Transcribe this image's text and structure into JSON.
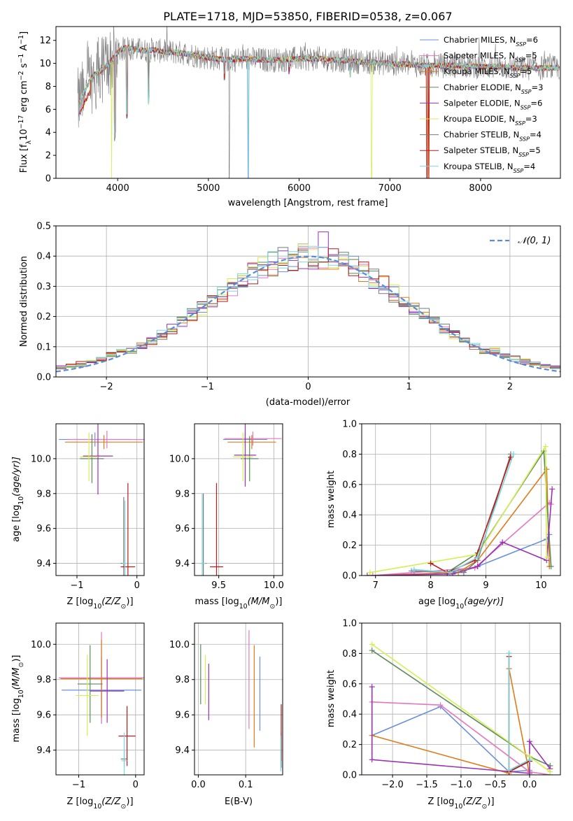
{
  "colors": [
    "#6a8fdc",
    "#e377c2",
    "#e07b1a",
    "#5b8a5b",
    "#9b30b8",
    "#d4ef55",
    "#7a7a7a",
    "#b81c1c",
    "#7fd6dc"
  ],
  "legend_labels": [
    "Chabrier MILES, N",
    "Salpeter MILES, N",
    "Kroupa MILES, N",
    "Chabrier ELODIE, N",
    "Salpeter ELODIE, N",
    "Kroupa ELODIE, N",
    "Chabrier STELIB, N",
    "Salpeter STELIB, N",
    "Kroupa STELIB, N"
  ],
  "legend_sub": "SSP",
  "legend_counts": [
    "=6",
    "=5",
    "=5",
    "=3",
    "=6",
    "=3",
    "=4",
    "=5",
    "=4"
  ],
  "chart_data": [
    {
      "id": "spectrum",
      "type": "line",
      "title": "PLATE=1718, MJD=53850, FIBERID=0538, z=0.067",
      "xlabel": "wavelength [Angstrom, rest frame]",
      "ylabel": "Flux [f",
      "ylabel_sub": "λ",
      "ylabel_rest": "10",
      "ylabel_exp": "−17",
      "ylabel_units": " erg cm",
      "ylabel_cm_exp": "−2",
      "ylabel_s": " s",
      "ylabel_s_exp": "−1",
      "ylabel_A": " A",
      "ylabel_A_exp": "−1",
      "ylabel_end": "]",
      "xlim": [
        3320,
        8880
      ],
      "ylim": [
        0,
        13.2
      ],
      "xticks": [
        4000,
        5000,
        6000,
        7000,
        8000
      ],
      "yticks": [
        0,
        2,
        4,
        6,
        8,
        10,
        12
      ],
      "xticklabels": [
        "4000",
        "5000",
        "6000",
        "7000",
        "8000"
      ],
      "yticklabels": [
        "0",
        "2",
        "4",
        "6",
        "8",
        "10",
        "12"
      ],
      "continuum": [
        [
          3560,
          6.4
        ],
        [
          3600,
          7.0
        ],
        [
          3650,
          7.8
        ],
        [
          3700,
          8.6
        ],
        [
          3750,
          9.1
        ],
        [
          3800,
          9.3
        ],
        [
          3850,
          9.6
        ],
        [
          3900,
          10.0
        ],
        [
          3950,
          10.4
        ],
        [
          4000,
          11.0
        ],
        [
          4100,
          11.4
        ],
        [
          4200,
          11.2
        ],
        [
          4300,
          11.1
        ],
        [
          4400,
          11.2
        ],
        [
          4500,
          11.0
        ],
        [
          4600,
          11.0
        ],
        [
          4700,
          10.9
        ],
        [
          4800,
          10.8
        ],
        [
          4900,
          10.6
        ],
        [
          5000,
          10.5
        ],
        [
          5200,
          10.3
        ],
        [
          5400,
          10.4
        ],
        [
          5600,
          10.3
        ],
        [
          5800,
          10.3
        ],
        [
          6000,
          10.4
        ],
        [
          6200,
          10.4
        ],
        [
          6400,
          10.3
        ],
        [
          6600,
          10.2
        ],
        [
          6800,
          10.1
        ],
        [
          7000,
          10.0
        ],
        [
          7200,
          9.9
        ],
        [
          7400,
          9.8
        ],
        [
          7600,
          9.8
        ],
        [
          7800,
          9.8
        ],
        [
          8000,
          9.7
        ],
        [
          8200,
          9.7
        ],
        [
          8400,
          9.6
        ],
        [
          8600,
          9.6
        ],
        [
          8800,
          9.6
        ]
      ]
    },
    {
      "id": "residuals",
      "type": "histogram",
      "xlabel": "(data-model)/error",
      "ylabel": "Normed distribution",
      "legend": "𝒩(0, 1)",
      "xlim": [
        -2.5,
        2.5
      ],
      "ylim": [
        0,
        0.5
      ],
      "xticks": [
        -2,
        -1,
        0,
        1,
        2
      ],
      "yticks": [
        0,
        0.1,
        0.2,
        0.3,
        0.4,
        0.5
      ],
      "xticklabels": [
        "−2",
        "−1",
        "0",
        "1",
        "2"
      ],
      "yticklabels": [
        "0.0",
        "0.1",
        "0.2",
        "0.3",
        "0.4",
        "0.5"
      ],
      "bin_width": 0.1
    },
    {
      "id": "age-vs-Z",
      "type": "errorbar",
      "xlabel": "Z [log",
      "xlabel_sub": "10",
      "xlabel_rest": "(Z/Z",
      "xlabel_sun": "⊙",
      "xlabel_end": ")]",
      "ylabel": "age  [log",
      "ylabel_sub": "10",
      "ylabel_rest": "(age/yr)]",
      "xlim": [
        -1.35,
        0.12
      ],
      "ylim": [
        9.33,
        10.2
      ],
      "xticks": [
        -1,
        0
      ],
      "yticks": [
        9.4,
        9.6,
        9.8,
        10.0
      ],
      "xticklabels": [
        "−1",
        "0"
      ],
      "yticklabels": [
        "9.4",
        "9.6",
        "9.8",
        "10.0"
      ],
      "points": [
        {
          "s": 0,
          "x": -0.7,
          "xerr": 0.6,
          "y": 10.11,
          "yerr": 0.04
        },
        {
          "s": 1,
          "x": -0.5,
          "xerr": 0.65,
          "y": 10.11,
          "yerr": 0.05
        },
        {
          "s": 2,
          "x": -0.55,
          "xerr": 0.65,
          "y": 10.095,
          "yerr": 0.04
        },
        {
          "s": 3,
          "x": -0.75,
          "xerr": 0.2,
          "y": 10.0,
          "yerr": 0.14
        },
        {
          "s": 4,
          "x": -0.65,
          "xerr": 0.25,
          "y": 10.015,
          "yerr": 0.22
        },
        {
          "s": 5,
          "x": -0.8,
          "xerr": 0.15,
          "y": 10.01,
          "yerr": 0.14
        },
        {
          "s": 6,
          "x": -0.22,
          "xerr": 0.05,
          "y": 9.4,
          "yerr": 0.38
        },
        {
          "s": 7,
          "x": -0.15,
          "xerr": 0.12,
          "y": 9.38,
          "yerr": 0.48
        },
        {
          "s": 8,
          "x": -0.2,
          "xerr": 0.04,
          "y": 9.4,
          "yerr": 0.36
        }
      ]
    },
    {
      "id": "age-vs-mass",
      "type": "errorbar",
      "xlabel": "mass [log",
      "xlabel_sub": "10",
      "xlabel_rest": "(M/M",
      "xlabel_sun": "⊙",
      "xlabel_end": ")]",
      "xlim": [
        9.28,
        10.08
      ],
      "ylim": [
        9.33,
        10.2
      ],
      "xticks": [
        9.5,
        10.0
      ],
      "yticks": [
        9.4,
        9.6,
        9.8,
        10.0
      ],
      "xticklabels": [
        "9.5",
        "10.0"
      ],
      "yticklabels": [
        "9.4",
        "9.6",
        "9.8",
        "10.0"
      ],
      "points": [
        {
          "s": 0,
          "x": 9.74,
          "xerr": 0.2,
          "y": 10.11,
          "yerr": 0.04
        },
        {
          "s": 1,
          "x": 9.81,
          "xerr": 0.26,
          "y": 10.115,
          "yerr": 0.04
        },
        {
          "s": 2,
          "x": 9.8,
          "xerr": 0.22,
          "y": 10.095,
          "yerr": 0.04
        },
        {
          "s": 3,
          "x": 9.78,
          "xerr": 0.08,
          "y": 10.0,
          "yerr": 0.13
        },
        {
          "s": 4,
          "x": 9.74,
          "xerr": 0.1,
          "y": 10.02,
          "yerr": 0.18
        },
        {
          "s": 5,
          "x": 9.72,
          "xerr": 0.09,
          "y": 10.01,
          "yerr": 0.14
        },
        {
          "s": 6,
          "x": 9.36,
          "xerr": 0.03,
          "y": 9.4,
          "yerr": 0.4
        },
        {
          "s": 7,
          "x": 9.48,
          "xerr": 0.06,
          "y": 9.38,
          "yerr": 0.48
        },
        {
          "s": 8,
          "x": 9.35,
          "xerr": 0.03,
          "y": 9.4,
          "yerr": 0.4
        }
      ]
    },
    {
      "id": "weight-vs-age",
      "type": "line",
      "xlabel": "age  [log",
      "xlabel_sub": "10",
      "xlabel_rest": "(age/yr)]",
      "ylabel": "mass weight",
      "xlim": [
        6.75,
        10.35
      ],
      "ylim": [
        0,
        1.0
      ],
      "xticks": [
        7,
        8,
        9,
        10
      ],
      "yticks": [
        0,
        0.2,
        0.4,
        0.6,
        0.8,
        1.0
      ],
      "xticklabels": [
        "7",
        "8",
        "9",
        "10"
      ],
      "yticklabels": [
        "0.0",
        "0.2",
        "0.4",
        "0.6",
        "0.8",
        "1.0"
      ],
      "series": [
        {
          "s": 0,
          "points": [
            [
              7.65,
              0.03
            ],
            [
              8.3,
              0.02
            ],
            [
              8.85,
              0.06
            ],
            [
              10.1,
              0.24
            ],
            [
              10.15,
              0.27
            ]
          ]
        },
        {
          "s": 1,
          "points": [
            [
              6.95,
              0.0
            ],
            [
              8.8,
              0.05
            ],
            [
              10.15,
              0.48
            ],
            [
              10.18,
              0.47
            ]
          ]
        },
        {
          "s": 2,
          "points": [
            [
              6.9,
              0.0
            ],
            [
              8.5,
              0.02
            ],
            [
              8.85,
              0.1
            ],
            [
              10.1,
              0.7
            ],
            [
              10.15,
              0.06
            ]
          ]
        },
        {
          "s": 3,
          "points": [
            [
              8.3,
              0.02
            ],
            [
              8.85,
              0.15
            ],
            [
              10.05,
              0.82
            ],
            [
              10.18,
              0.06
            ]
          ]
        },
        {
          "s": 4,
          "points": [
            [
              6.85,
              0.0
            ],
            [
              8.4,
              0.01
            ],
            [
              8.85,
              0.06
            ],
            [
              9.3,
              0.22
            ],
            [
              10.1,
              0.1
            ],
            [
              10.2,
              0.57
            ]
          ]
        },
        {
          "s": 5,
          "points": [
            [
              6.9,
              0.02
            ],
            [
              8.85,
              0.14
            ],
            [
              10.08,
              0.85
            ],
            [
              10.1,
              0.12
            ]
          ]
        },
        {
          "s": 6,
          "points": [
            [
              7.7,
              0.03
            ],
            [
              8.6,
              0.02
            ],
            [
              8.85,
              0.1
            ],
            [
              9.45,
              0.8
            ]
          ]
        },
        {
          "s": 7,
          "points": [
            [
              8.0,
              0.08
            ],
            [
              8.3,
              0.02
            ],
            [
              8.8,
              0.1
            ],
            [
              9.45,
              0.78
            ]
          ]
        },
        {
          "s": 8,
          "points": [
            [
              7.7,
              0.04
            ],
            [
              8.35,
              0.02
            ],
            [
              8.85,
              0.12
            ],
            [
              9.5,
              0.8
            ]
          ]
        }
      ]
    },
    {
      "id": "mass-vs-Z",
      "type": "errorbar",
      "xlabel": "Z [log",
      "xlabel_sub": "10",
      "xlabel_rest": "(Z/Z",
      "xlabel_sun": "⊙",
      "xlabel_end": ")]",
      "ylabel": "mass [log",
      "ylabel_sub": "10",
      "ylabel_rest": "(M/M",
      "ylabel_sun": "⊙",
      "ylabel_end": ")]",
      "xlim": [
        -1.4,
        0.15
      ],
      "ylim": [
        9.26,
        10.12
      ],
      "xticks": [
        -1,
        0
      ],
      "yticks": [
        9.4,
        9.6,
        9.8,
        10.0
      ],
      "xticklabels": [
        "−1",
        "0"
      ],
      "yticklabels": [
        "9.4",
        "9.6",
        "9.8",
        "10.0"
      ],
      "points": [
        {
          "s": 0,
          "x": -0.6,
          "xerr": 0.7,
          "y": 9.74,
          "yerr": 0.19
        },
        {
          "s": 1,
          "x": -0.6,
          "xerr": 0.75,
          "y": 9.81,
          "yerr": 0.26
        },
        {
          "s": 2,
          "x": -0.6,
          "xerr": 0.72,
          "y": 9.805,
          "yerr": 0.22
        },
        {
          "s": 3,
          "x": -0.8,
          "xerr": 0.22,
          "y": 9.775,
          "yerr": 0.22
        },
        {
          "s": 4,
          "x": -0.5,
          "xerr": 0.3,
          "y": 9.735,
          "yerr": 0.18
        },
        {
          "s": 5,
          "x": -0.85,
          "xerr": 0.2,
          "y": 9.71,
          "yerr": 0.23
        },
        {
          "s": 6,
          "x": -0.2,
          "xerr": 0.06,
          "y": 9.35,
          "yerr": 0.05
        },
        {
          "s": 7,
          "x": -0.15,
          "xerr": 0.15,
          "y": 9.48,
          "yerr": 0.17
        },
        {
          "s": 8,
          "x": -0.2,
          "xerr": 0.05,
          "y": 9.34,
          "yerr": 0.16
        }
      ]
    },
    {
      "id": "mass-vs-EBV",
      "type": "errorbar",
      "xlabel": "E(B-V)",
      "xlim": [
        -0.008,
        0.178
      ],
      "ylim": [
        9.26,
        10.12
      ],
      "xticks": [
        0.0,
        0.1
      ],
      "yticks": [
        9.4,
        9.6,
        9.8,
        10.0
      ],
      "xticklabels": [
        "0.0",
        "0.1"
      ],
      "yticklabels": [
        "9.4",
        "9.6",
        "9.8",
        "10.0"
      ],
      "points": [
        {
          "s": 0,
          "x": 0.13,
          "y": 9.72,
          "yerr": 0.21
        },
        {
          "s": 1,
          "x": 0.107,
          "y": 9.8,
          "yerr": 0.28
        },
        {
          "s": 2,
          "x": 0.118,
          "y": 9.705,
          "yerr": 0.29
        },
        {
          "s": 3,
          "x": 0.005,
          "y": 9.83,
          "yerr": 0.17
        },
        {
          "s": 4,
          "x": 0.022,
          "y": 9.73,
          "yerr": 0.16
        },
        {
          "s": 5,
          "x": 0.015,
          "y": 9.8,
          "yerr": 0.14
        },
        {
          "s": 6,
          "x": 0.175,
          "y": 9.4,
          "yerr": 0.1
        },
        {
          "s": 7,
          "x": 0.175,
          "y": 9.5,
          "yerr": 0.16
        },
        {
          "s": 8,
          "x": 0.174,
          "y": 9.38,
          "yerr": 0.1
        }
      ]
    },
    {
      "id": "weight-vs-Z",
      "type": "line",
      "xlabel": "Z [log",
      "xlabel_sub": "10",
      "xlabel_rest": "(Z/Z",
      "xlabel_sun": "⊙",
      "xlabel_end": ")]",
      "ylabel": "mass weight",
      "xlim": [
        -2.45,
        0.45
      ],
      "ylim": [
        0,
        1.0
      ],
      "xticks": [
        -2.0,
        -1.5,
        -1.0,
        -0.5,
        0.0
      ],
      "yticks": [
        0,
        0.2,
        0.4,
        0.6,
        0.8,
        1.0
      ],
      "xticklabels": [
        "−2.0",
        "−1.5",
        "−1.0",
        "−0.5",
        "0.0"
      ],
      "yticklabels": [
        "0.0",
        "0.2",
        "0.4",
        "0.6",
        "0.8",
        "1.0"
      ],
      "series": [
        {
          "s": 0,
          "points": [
            [
              -2.3,
              0.26
            ],
            [
              -1.3,
              0.45
            ],
            [
              -0.3,
              0.02
            ],
            [
              0.0,
              0.03
            ]
          ]
        },
        {
          "s": 1,
          "points": [
            [
              -2.3,
              0.48
            ],
            [
              -1.3,
              0.46
            ],
            [
              0.0,
              0.02
            ],
            [
              0.3,
              0.0
            ]
          ]
        },
        {
          "s": 2,
          "points": [
            [
              -2.3,
              0.26
            ],
            [
              -0.3,
              0.01
            ],
            [
              -0.3,
              0.7
            ],
            [
              0.0,
              0.0
            ]
          ]
        },
        {
          "s": 3,
          "points": [
            [
              -2.3,
              0.82
            ],
            [
              0.0,
              0.12
            ],
            [
              0.3,
              0.06
            ]
          ]
        },
        {
          "s": 4,
          "points": [
            [
              -2.3,
              0.58
            ],
            [
              -2.3,
              0.1
            ],
            [
              0.0,
              0.01
            ],
            [
              0.0,
              0.22
            ],
            [
              0.3,
              0.04
            ]
          ]
        },
        {
          "s": 5,
          "points": [
            [
              -2.3,
              0.86
            ],
            [
              0.0,
              0.12
            ],
            [
              0.3,
              0.02
            ]
          ]
        },
        {
          "s": 6,
          "points": [
            [
              -0.3,
              0.8
            ],
            [
              -0.3,
              0.03
            ],
            [
              0.0,
              0.09
            ]
          ]
        },
        {
          "s": 7,
          "points": [
            [
              -0.3,
              0.78
            ],
            [
              -0.3,
              0.02
            ],
            [
              0.0,
              0.09
            ]
          ]
        },
        {
          "s": 8,
          "points": [
            [
              -0.3,
              0.8
            ],
            [
              -0.3,
              0.03
            ],
            [
              0.0,
              0.1
            ]
          ]
        }
      ]
    }
  ]
}
